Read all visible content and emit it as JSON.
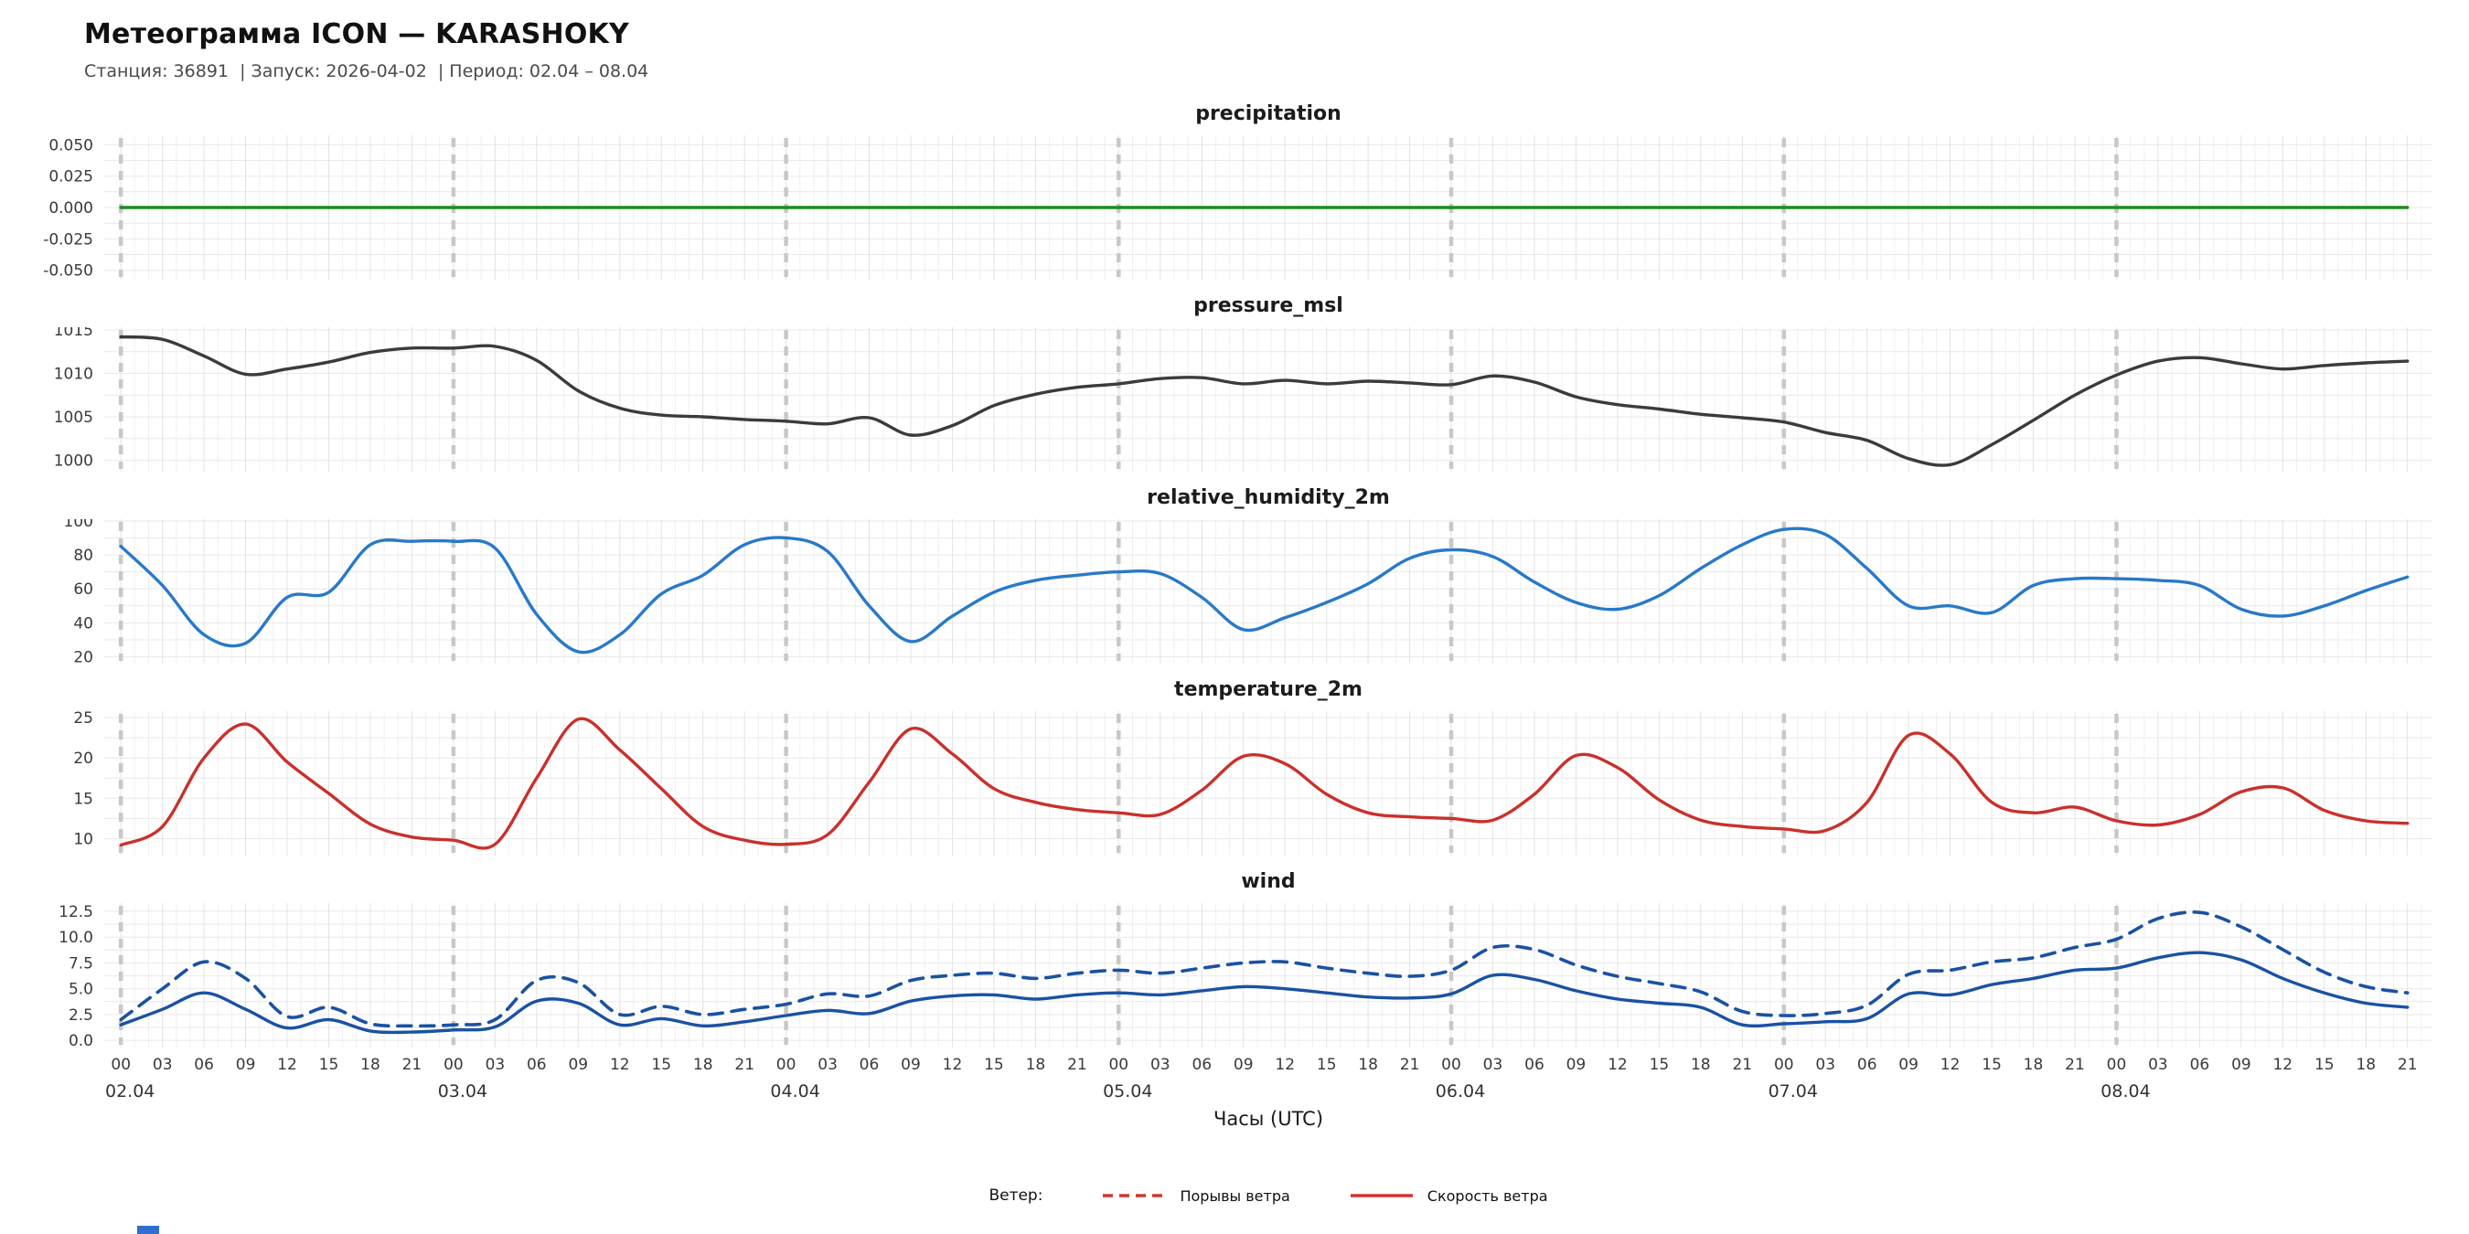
{
  "header": {
    "title": "Метеограмма ICON — KARASHOKY",
    "subtitle": "Станция: 36891  | Запуск: 2026-04-02  | Период: 02.04 – 08.04"
  },
  "xaxis": {
    "label": "Часы (UTC)",
    "tick_step_hours": 3,
    "hour_labels": [
      "00",
      "03",
      "06",
      "09",
      "12",
      "15",
      "18",
      "21"
    ],
    "days": [
      {
        "start_hour": 0,
        "label": "02.04"
      },
      {
        "start_hour": 24,
        "label": "03.04"
      },
      {
        "start_hour": 48,
        "label": "04.04"
      },
      {
        "start_hour": 72,
        "label": "05.04"
      },
      {
        "start_hour": 96,
        "label": "06.04"
      },
      {
        "start_hour": 120,
        "label": "07.04"
      },
      {
        "start_hour": 144,
        "label": "08.04"
      }
    ],
    "range_hours": [
      0,
      167
    ]
  },
  "legend": {
    "label": "Ветер:",
    "items": [
      {
        "label": "Порывы ветра",
        "style": "dashed",
        "color": "#d23430"
      },
      {
        "label": "Скорость ветра",
        "style": "solid",
        "color": "#d23430"
      }
    ]
  },
  "x_hours": [
    0,
    3,
    6,
    9,
    12,
    15,
    18,
    21,
    24,
    27,
    30,
    33,
    36,
    39,
    42,
    45,
    48,
    51,
    54,
    57,
    60,
    63,
    66,
    69,
    72,
    75,
    78,
    81,
    84,
    87,
    90,
    93,
    96,
    99,
    102,
    105,
    108,
    111,
    114,
    117,
    120,
    123,
    126,
    129,
    132,
    135,
    138,
    141,
    144,
    147,
    150,
    153,
    156,
    159,
    162,
    165
  ],
  "chart_data": [
    {
      "type": "line",
      "title": "precipitation",
      "color": "#1f8b1f",
      "ylim": [
        -0.0575,
        0.0575
      ],
      "yticks": [
        0.05,
        0.025,
        0,
        -0.025,
        -0.05
      ],
      "ytick_labels": [
        "0.050",
        "0.025",
        "0.000",
        "-0.025",
        "-0.050"
      ],
      "values": [
        0,
        0,
        0,
        0,
        0,
        0,
        0,
        0,
        0,
        0,
        0,
        0,
        0,
        0,
        0,
        0,
        0,
        0,
        0,
        0,
        0,
        0,
        0,
        0,
        0,
        0,
        0,
        0,
        0,
        0,
        0,
        0,
        0,
        0,
        0,
        0,
        0,
        0,
        0,
        0,
        0,
        0,
        0,
        0,
        0,
        0,
        0,
        0,
        0,
        0,
        0,
        0,
        0,
        0,
        0,
        0
      ]
    },
    {
      "type": "line",
      "title": "pressure_msl",
      "color": "#3b3b3b",
      "ylim": [
        998.7,
        1015.3
      ],
      "yticks": [
        1015,
        1010,
        1005,
        1000
      ],
      "ytick_labels": [
        "1015",
        "1010",
        "1005",
        "1000"
      ],
      "values": [
        1014.2,
        1013.9,
        1012.0,
        1009.9,
        1010.5,
        1011.3,
        1012.4,
        1012.9,
        1012.9,
        1013.1,
        1011.5,
        1008.0,
        1006.0,
        1005.2,
        1005.0,
        1004.7,
        1004.5,
        1004.2,
        1004.9,
        1002.9,
        1004.0,
        1006.3,
        1007.6,
        1008.4,
        1008.8,
        1009.4,
        1009.5,
        1008.8,
        1009.2,
        1008.8,
        1009.1,
        1008.9,
        1008.7,
        1009.7,
        1009.0,
        1007.3,
        1006.4,
        1005.9,
        1005.3,
        1004.9,
        1004.4,
        1003.2,
        1002.3,
        1000.2,
        999.5,
        1001.8,
        1004.6,
        1007.5,
        1009.8,
        1011.4,
        1011.8,
        1011.1,
        1010.5,
        1010.9,
        1011.2,
        1011.4
      ]
    },
    {
      "type": "line",
      "title": "relative_humidity_2m",
      "color": "#2879c9",
      "ylim": [
        16,
        101
      ],
      "yticks": [
        100,
        80,
        60,
        40,
        20
      ],
      "ytick_labels": [
        "100",
        "80",
        "60",
        "40",
        "20"
      ],
      "values": [
        85,
        62,
        33,
        28,
        55,
        58,
        86,
        88,
        88,
        84,
        45,
        23,
        33,
        57,
        68,
        86,
        90,
        82,
        50,
        29,
        44,
        58,
        65,
        68,
        70,
        69,
        55,
        36,
        43,
        52,
        63,
        78,
        83,
        79,
        64,
        52,
        48,
        56,
        72,
        86,
        95,
        92,
        72,
        50,
        50,
        46,
        62,
        66,
        66,
        65,
        62,
        48,
        44,
        50,
        59,
        67
      ]
    },
    {
      "type": "line",
      "title": "temperature_2m",
      "color": "#c9312c",
      "ylim": [
        7.9,
        25.8
      ],
      "yticks": [
        25,
        20,
        15,
        10
      ],
      "ytick_labels": [
        "25",
        "20",
        "15",
        "10"
      ],
      "values": [
        9.2,
        11.5,
        20.0,
        24.2,
        19.5,
        15.6,
        11.8,
        10.2,
        9.8,
        9.3,
        17.5,
        24.8,
        21.0,
        16.2,
        11.5,
        9.8,
        9.3,
        10.5,
        17.0,
        23.6,
        20.5,
        16.2,
        14.5,
        13.6,
        13.2,
        13.0,
        16.0,
        20.2,
        19.3,
        15.5,
        13.2,
        12.7,
        12.5,
        12.3,
        15.5,
        20.3,
        18.8,
        14.8,
        12.3,
        11.5,
        11.2,
        11.0,
        14.5,
        22.8,
        20.5,
        14.5,
        13.2,
        13.9,
        12.2,
        11.7,
        13.0,
        15.8,
        16.3,
        13.5,
        12.2,
        11.9
      ]
    },
    {
      "type": "line",
      "title": "wind",
      "color": "#1a52a2",
      "ylim": [
        -0.7,
        13.3
      ],
      "yticks": [
        12.5,
        10.0,
        7.5,
        5.0,
        2.5,
        0.0
      ],
      "ytick_labels": [
        "12.5",
        "10.0",
        "7.5",
        "5.0",
        "2.5",
        "0.0"
      ],
      "series": [
        {
          "name": "Порывы ветра",
          "style": "dashed",
          "values": [
            2.0,
            5.0,
            7.6,
            6.0,
            2.3,
            3.2,
            1.6,
            1.4,
            1.5,
            2.0,
            5.8,
            5.6,
            2.5,
            3.3,
            2.5,
            3.0,
            3.5,
            4.5,
            4.3,
            5.8,
            6.3,
            6.5,
            6.0,
            6.5,
            6.8,
            6.5,
            7.0,
            7.5,
            7.6,
            7.0,
            6.5,
            6.2,
            6.8,
            9.0,
            8.8,
            7.3,
            6.2,
            5.5,
            4.7,
            2.8,
            2.4,
            2.6,
            3.4,
            6.4,
            6.8,
            7.6,
            8.0,
            9.0,
            9.8,
            11.8,
            12.4,
            11.0,
            8.8,
            6.6,
            5.2,
            4.6
          ]
        },
        {
          "name": "Скорость ветра",
          "style": "solid",
          "values": [
            1.5,
            3.0,
            4.6,
            3.0,
            1.2,
            2.0,
            0.9,
            0.8,
            1.0,
            1.3,
            3.8,
            3.6,
            1.5,
            2.1,
            1.4,
            1.8,
            2.4,
            2.9,
            2.6,
            3.8,
            4.3,
            4.4,
            4.0,
            4.4,
            4.6,
            4.4,
            4.8,
            5.2,
            5.0,
            4.6,
            4.2,
            4.1,
            4.5,
            6.3,
            5.9,
            4.8,
            4.0,
            3.6,
            3.2,
            1.5,
            1.6,
            1.8,
            2.1,
            4.5,
            4.4,
            5.4,
            6.0,
            6.8,
            7.0,
            8.0,
            8.5,
            7.8,
            6.0,
            4.6,
            3.6,
            3.2
          ]
        }
      ]
    }
  ]
}
